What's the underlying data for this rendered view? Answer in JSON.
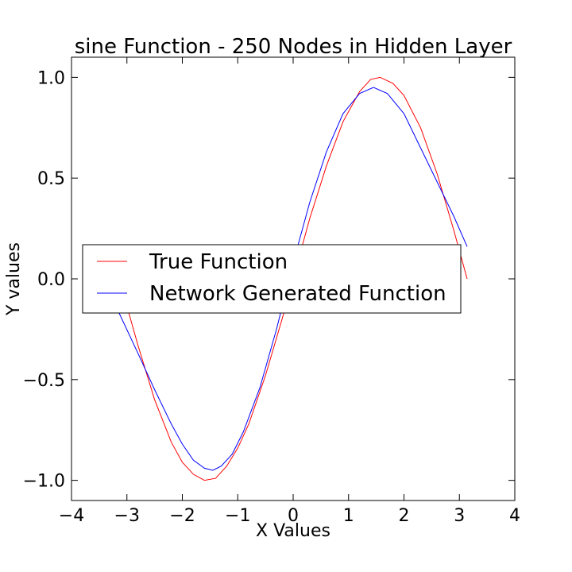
{
  "chart_data": {
    "type": "line",
    "title": "sine Function - 250 Nodes in Hidden Layer",
    "xlabel": "X Values",
    "ylabel": "Y values",
    "xlim": [
      -4,
      4
    ],
    "ylim": [
      -1.1,
      1.1
    ],
    "x_ticks": [
      -4,
      -3,
      -2,
      -1,
      0,
      1,
      2,
      3,
      4
    ],
    "x_tick_labels": [
      "−4",
      "−3",
      "−2",
      "−1",
      "0",
      "1",
      "2",
      "3",
      "4"
    ],
    "y_ticks": [
      -1.0,
      -0.5,
      0.0,
      0.5,
      1.0
    ],
    "y_tick_labels": [
      "−1.0",
      "−0.5",
      "0.0",
      "0.5",
      "1.0"
    ],
    "grid": false,
    "legend_position": "center-left",
    "series": [
      {
        "name": "True Function",
        "color": "#ff0000",
        "x": [
          -3.14,
          -2.8,
          -2.5,
          -2.2,
          -2.0,
          -1.8,
          -1.6,
          -1.4,
          -1.2,
          -1.0,
          -0.8,
          -0.5,
          -0.2,
          0.0,
          0.3,
          0.6,
          0.9,
          1.2,
          1.4,
          1.57,
          1.8,
          2.0,
          2.3,
          2.6,
          2.9,
          3.14
        ],
        "y": [
          0.0,
          -0.33,
          -0.6,
          -0.81,
          -0.91,
          -0.97,
          -1.0,
          -0.99,
          -0.93,
          -0.84,
          -0.72,
          -0.48,
          -0.2,
          0.0,
          0.3,
          0.56,
          0.78,
          0.93,
          0.99,
          1.0,
          0.97,
          0.91,
          0.75,
          0.52,
          0.24,
          0.0
        ]
      },
      {
        "name": "Network Generated Function",
        "color": "#0000ff",
        "x": [
          -3.14,
          -2.8,
          -2.5,
          -2.2,
          -2.0,
          -1.8,
          -1.6,
          -1.45,
          -1.3,
          -1.1,
          -0.9,
          -0.6,
          -0.3,
          0.0,
          0.3,
          0.6,
          0.9,
          1.2,
          1.45,
          1.7,
          2.0,
          2.3,
          2.6,
          2.9,
          3.14
        ],
        "y": [
          -0.17,
          -0.37,
          -0.55,
          -0.72,
          -0.82,
          -0.9,
          -0.94,
          -0.95,
          -0.93,
          -0.87,
          -0.76,
          -0.54,
          -0.25,
          0.08,
          0.38,
          0.63,
          0.82,
          0.92,
          0.95,
          0.92,
          0.82,
          0.65,
          0.48,
          0.31,
          0.16
        ]
      }
    ]
  }
}
